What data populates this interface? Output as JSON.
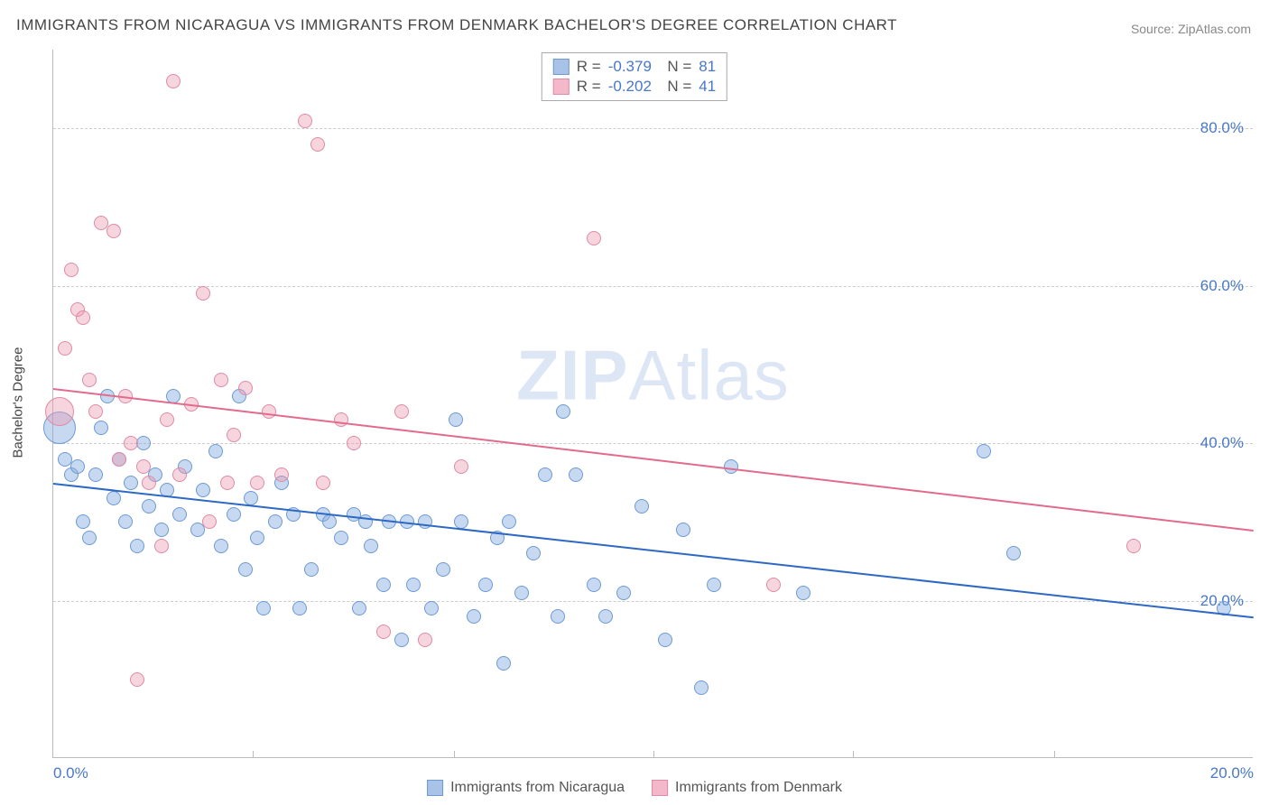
{
  "title": "IMMIGRANTS FROM NICARAGUA VS IMMIGRANTS FROM DENMARK BACHELOR'S DEGREE CORRELATION CHART",
  "source_label": "Source: ",
  "source_name": "ZipAtlas.com",
  "watermark": {
    "bold": "ZIP",
    "rest": "Atlas"
  },
  "chart": {
    "type": "scatter",
    "ylabel": "Bachelor's Degree",
    "xlim": [
      0,
      20
    ],
    "ylim": [
      0,
      90
    ],
    "xticks": [
      {
        "v": 0,
        "label": "0.0%"
      },
      {
        "v": 20,
        "label": "20.0%"
      }
    ],
    "xtick_minor": [
      3.33,
      6.67,
      10,
      13.33,
      16.67
    ],
    "yticks": [
      {
        "v": 20,
        "label": "20.0%"
      },
      {
        "v": 40,
        "label": "40.0%"
      },
      {
        "v": 60,
        "label": "60.0%"
      },
      {
        "v": 80,
        "label": "80.0%"
      }
    ],
    "grid_color": "#cccccc",
    "background_color": "#ffffff",
    "series": [
      {
        "name": "Immigrants from Nicaragua",
        "fill": "rgba(130,170,225,0.45)",
        "stroke": "#6d99d4",
        "line_color": "#2d68c4",
        "swatch_fill": "#a9c3e8",
        "swatch_border": "#6d99d4",
        "R": "-0.379",
        "N": "81",
        "trend": {
          "x1": 0,
          "y1": 35,
          "x2": 20,
          "y2": 18
        },
        "points": [
          {
            "x": 0.1,
            "y": 42,
            "r": 18
          },
          {
            "x": 0.2,
            "y": 38,
            "r": 8
          },
          {
            "x": 0.3,
            "y": 36,
            "r": 8
          },
          {
            "x": 0.4,
            "y": 37,
            "r": 8
          },
          {
            "x": 0.5,
            "y": 30,
            "r": 8
          },
          {
            "x": 0.6,
            "y": 28,
            "r": 8
          },
          {
            "x": 0.7,
            "y": 36,
            "r": 8
          },
          {
            "x": 0.8,
            "y": 42,
            "r": 8
          },
          {
            "x": 0.9,
            "y": 46,
            "r": 8
          },
          {
            "x": 1.0,
            "y": 33,
            "r": 8
          },
          {
            "x": 1.1,
            "y": 38,
            "r": 8
          },
          {
            "x": 1.2,
            "y": 30,
            "r": 8
          },
          {
            "x": 1.3,
            "y": 35,
            "r": 8
          },
          {
            "x": 1.4,
            "y": 27,
            "r": 8
          },
          {
            "x": 1.5,
            "y": 40,
            "r": 8
          },
          {
            "x": 1.6,
            "y": 32,
            "r": 8
          },
          {
            "x": 1.7,
            "y": 36,
            "r": 8
          },
          {
            "x": 1.8,
            "y": 29,
            "r": 8
          },
          {
            "x": 1.9,
            "y": 34,
            "r": 8
          },
          {
            "x": 2.0,
            "y": 46,
            "r": 8
          },
          {
            "x": 2.1,
            "y": 31,
            "r": 8
          },
          {
            "x": 2.2,
            "y": 37,
            "r": 8
          },
          {
            "x": 2.4,
            "y": 29,
            "r": 8
          },
          {
            "x": 2.5,
            "y": 34,
            "r": 8
          },
          {
            "x": 2.7,
            "y": 39,
            "r": 8
          },
          {
            "x": 2.8,
            "y": 27,
            "r": 8
          },
          {
            "x": 3.0,
            "y": 31,
            "r": 8
          },
          {
            "x": 3.1,
            "y": 46,
            "r": 8
          },
          {
            "x": 3.2,
            "y": 24,
            "r": 8
          },
          {
            "x": 3.3,
            "y": 33,
            "r": 8
          },
          {
            "x": 3.4,
            "y": 28,
            "r": 8
          },
          {
            "x": 3.5,
            "y": 19,
            "r": 8
          },
          {
            "x": 3.7,
            "y": 30,
            "r": 8
          },
          {
            "x": 3.8,
            "y": 35,
            "r": 8
          },
          {
            "x": 4.0,
            "y": 31,
            "r": 8
          },
          {
            "x": 4.1,
            "y": 19,
            "r": 8
          },
          {
            "x": 4.3,
            "y": 24,
            "r": 8
          },
          {
            "x": 4.5,
            "y": 31,
            "r": 8
          },
          {
            "x": 4.6,
            "y": 30,
            "r": 8
          },
          {
            "x": 4.8,
            "y": 28,
            "r": 8
          },
          {
            "x": 5.0,
            "y": 31,
            "r": 8
          },
          {
            "x": 5.1,
            "y": 19,
            "r": 8
          },
          {
            "x": 5.2,
            "y": 30,
            "r": 8
          },
          {
            "x": 5.3,
            "y": 27,
            "r": 8
          },
          {
            "x": 5.5,
            "y": 22,
            "r": 8
          },
          {
            "x": 5.6,
            "y": 30,
            "r": 8
          },
          {
            "x": 5.8,
            "y": 15,
            "r": 8
          },
          {
            "x": 5.9,
            "y": 30,
            "r": 8
          },
          {
            "x": 6.0,
            "y": 22,
            "r": 8
          },
          {
            "x": 6.2,
            "y": 30,
            "r": 8
          },
          {
            "x": 6.3,
            "y": 19,
            "r": 8
          },
          {
            "x": 6.5,
            "y": 24,
            "r": 8
          },
          {
            "x": 6.7,
            "y": 43,
            "r": 8
          },
          {
            "x": 6.8,
            "y": 30,
            "r": 8
          },
          {
            "x": 7.0,
            "y": 18,
            "r": 8
          },
          {
            "x": 7.2,
            "y": 22,
            "r": 8
          },
          {
            "x": 7.4,
            "y": 28,
            "r": 8
          },
          {
            "x": 7.5,
            "y": 12,
            "r": 8
          },
          {
            "x": 7.6,
            "y": 30,
            "r": 8
          },
          {
            "x": 7.8,
            "y": 21,
            "r": 8
          },
          {
            "x": 8.0,
            "y": 26,
            "r": 8
          },
          {
            "x": 8.2,
            "y": 36,
            "r": 8
          },
          {
            "x": 8.4,
            "y": 18,
            "r": 8
          },
          {
            "x": 8.5,
            "y": 44,
            "r": 8
          },
          {
            "x": 8.7,
            "y": 36,
            "r": 8
          },
          {
            "x": 9.0,
            "y": 22,
            "r": 8
          },
          {
            "x": 9.2,
            "y": 18,
            "r": 8
          },
          {
            "x": 9.5,
            "y": 21,
            "r": 8
          },
          {
            "x": 9.8,
            "y": 32,
            "r": 8
          },
          {
            "x": 10.2,
            "y": 15,
            "r": 8
          },
          {
            "x": 10.5,
            "y": 29,
            "r": 8
          },
          {
            "x": 10.8,
            "y": 9,
            "r": 8
          },
          {
            "x": 11.0,
            "y": 22,
            "r": 8
          },
          {
            "x": 11.3,
            "y": 37,
            "r": 8
          },
          {
            "x": 12.5,
            "y": 21,
            "r": 8
          },
          {
            "x": 15.5,
            "y": 39,
            "r": 8
          },
          {
            "x": 16.0,
            "y": 26,
            "r": 8
          },
          {
            "x": 19.5,
            "y": 19,
            "r": 8
          }
        ]
      },
      {
        "name": "Immigrants from Denmark",
        "fill": "rgba(235,150,175,0.40)",
        "stroke": "#e08aa5",
        "line_color": "#e26b8d",
        "swatch_fill": "#f3b8c9",
        "swatch_border": "#e08aa5",
        "R": "-0.202",
        "N": "41",
        "trend": {
          "x1": 0,
          "y1": 47,
          "x2": 20,
          "y2": 29
        },
        "points": [
          {
            "x": 0.1,
            "y": 44,
            "r": 16
          },
          {
            "x": 0.2,
            "y": 52,
            "r": 8
          },
          {
            "x": 0.3,
            "y": 62,
            "r": 8
          },
          {
            "x": 0.4,
            "y": 57,
            "r": 8
          },
          {
            "x": 0.5,
            "y": 56,
            "r": 8
          },
          {
            "x": 0.6,
            "y": 48,
            "r": 8
          },
          {
            "x": 0.7,
            "y": 44,
            "r": 8
          },
          {
            "x": 0.8,
            "y": 68,
            "r": 8
          },
          {
            "x": 1.0,
            "y": 67,
            "r": 8
          },
          {
            "x": 1.1,
            "y": 38,
            "r": 8
          },
          {
            "x": 1.2,
            "y": 46,
            "r": 8
          },
          {
            "x": 1.3,
            "y": 40,
            "r": 8
          },
          {
            "x": 1.4,
            "y": 10,
            "r": 8
          },
          {
            "x": 1.5,
            "y": 37,
            "r": 8
          },
          {
            "x": 1.6,
            "y": 35,
            "r": 8
          },
          {
            "x": 1.8,
            "y": 27,
            "r": 8
          },
          {
            "x": 1.9,
            "y": 43,
            "r": 8
          },
          {
            "x": 2.0,
            "y": 86,
            "r": 8
          },
          {
            "x": 2.1,
            "y": 36,
            "r": 8
          },
          {
            "x": 2.3,
            "y": 45,
            "r": 8
          },
          {
            "x": 2.5,
            "y": 59,
            "r": 8
          },
          {
            "x": 2.6,
            "y": 30,
            "r": 8
          },
          {
            "x": 2.8,
            "y": 48,
            "r": 8
          },
          {
            "x": 2.9,
            "y": 35,
            "r": 8
          },
          {
            "x": 3.0,
            "y": 41,
            "r": 8
          },
          {
            "x": 3.2,
            "y": 47,
            "r": 8
          },
          {
            "x": 3.4,
            "y": 35,
            "r": 8
          },
          {
            "x": 3.6,
            "y": 44,
            "r": 8
          },
          {
            "x": 3.8,
            "y": 36,
            "r": 8
          },
          {
            "x": 4.2,
            "y": 81,
            "r": 8
          },
          {
            "x": 4.4,
            "y": 78,
            "r": 8
          },
          {
            "x": 4.5,
            "y": 35,
            "r": 8
          },
          {
            "x": 4.8,
            "y": 43,
            "r": 8
          },
          {
            "x": 5.0,
            "y": 40,
            "r": 8
          },
          {
            "x": 5.5,
            "y": 16,
            "r": 8
          },
          {
            "x": 5.8,
            "y": 44,
            "r": 8
          },
          {
            "x": 6.2,
            "y": 15,
            "r": 8
          },
          {
            "x": 6.8,
            "y": 37,
            "r": 8
          },
          {
            "x": 9.0,
            "y": 66,
            "r": 8
          },
          {
            "x": 12.0,
            "y": 22,
            "r": 8
          },
          {
            "x": 18.0,
            "y": 27,
            "r": 8
          }
        ]
      }
    ]
  },
  "legend": {
    "series1": "Immigrants from Nicaragua",
    "series2": "Immigrants from Denmark"
  }
}
